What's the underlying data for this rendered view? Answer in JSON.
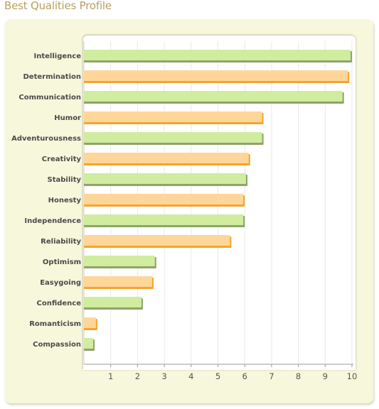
{
  "page": {
    "title": "Best Qualities Profile"
  },
  "colors": {
    "green_fill": "#cfec9f",
    "green_border": "#8fa36a",
    "orange_fill": "#ffd699",
    "orange_border": "#f4a42e",
    "gridline": "#e9e9e9",
    "panel_bg": "#f7f7dc",
    "title": "#b8a15e"
  },
  "chart_data": {
    "type": "bar",
    "orientation": "horizontal",
    "title": "",
    "xlabel": "",
    "ylabel": "",
    "xlim": [
      0,
      10
    ],
    "xticks": [
      1,
      2,
      3,
      4,
      5,
      6,
      7,
      8,
      9,
      10
    ],
    "grid": true,
    "legend": "none",
    "categories": [
      "Intelligence",
      "Determination",
      "Communication",
      "Humor",
      "Adventurousness",
      "Creativity",
      "Stability",
      "Honesty",
      "Independence",
      "Reliability",
      "Optimism",
      "Easygoing",
      "Confidence",
      "Romanticism",
      "Compassion"
    ],
    "values": [
      10,
      9.9,
      9.7,
      6.7,
      6.7,
      6.2,
      6.1,
      6.0,
      6.0,
      5.5,
      2.7,
      2.6,
      2.2,
      0.5,
      0.4
    ],
    "bar_colors": [
      "green",
      "orange",
      "green",
      "orange",
      "green",
      "orange",
      "green",
      "orange",
      "green",
      "orange",
      "green",
      "orange",
      "green",
      "orange",
      "green"
    ]
  }
}
